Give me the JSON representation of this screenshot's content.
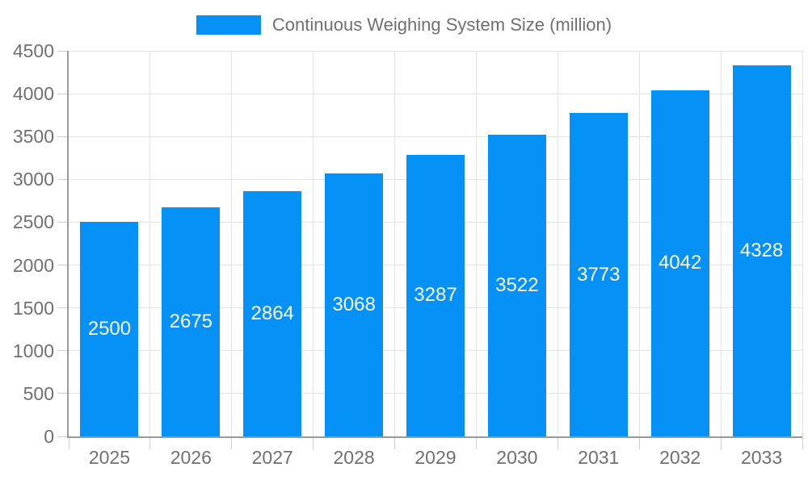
{
  "chart_data": {
    "type": "bar",
    "title": "Continuous Weighing System Size (million)",
    "categories": [
      "2025",
      "2026",
      "2027",
      "2028",
      "2029",
      "2030",
      "2031",
      "2032",
      "2033"
    ],
    "values": [
      2500,
      2675,
      2864,
      3068,
      3287,
      3522,
      3773,
      4042,
      4328
    ],
    "xlabel": "",
    "ylabel": "",
    "ylim": [
      0,
      4500
    ],
    "yticks": [
      0,
      500,
      1000,
      1500,
      2000,
      2500,
      3000,
      3500,
      4000,
      4500
    ],
    "grid": true,
    "legend_position": "top",
    "value_label_position": "inside-center"
  },
  "legend": {
    "label": "Continuous Weighing System Size (million)"
  },
  "colors": {
    "bar": "#0591F5",
    "grid": "#E3E3E3",
    "axis": "#9A9A9A",
    "tick": "#CFCFCF",
    "label": "#707070",
    "value_label": "#FFFFFF",
    "background": "#FFFFFF"
  }
}
